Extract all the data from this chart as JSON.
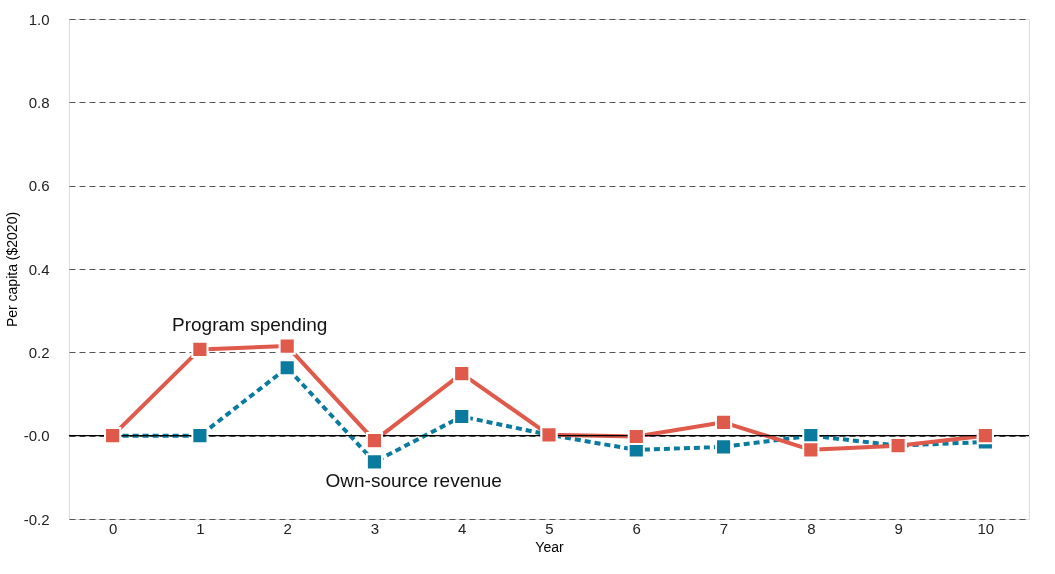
{
  "chart_data": {
    "type": "line",
    "xlabel": "Year",
    "ylabel": "Per capita ($2020)",
    "x": [
      0,
      1,
      2,
      3,
      4,
      5,
      6,
      7,
      8,
      9,
      10
    ],
    "xlim": [
      -0.5,
      10.5
    ],
    "xticks": [
      0,
      1,
      2,
      3,
      4,
      5,
      6,
      7,
      8,
      9,
      10
    ],
    "ylim": [
      -0.2,
      1.0
    ],
    "yticks": [
      -0.2,
      {
        "value": 0,
        "label": "-0.0"
      },
      0.2,
      0.4,
      0.6,
      0.8,
      {
        "value": 1,
        "label": "1.0"
      }
    ],
    "grid": "y",
    "marker": "square",
    "ref_lines": [
      {
        "axis": "y",
        "value": 0,
        "color": "#000000",
        "line_style": "solid"
      }
    ],
    "series": [
      {
        "name": "Own-source revenue",
        "color": "#0a7a9e",
        "line_style": "dashed",
        "values": [
          0,
          0,
          0.163,
          -0.063,
          0.046,
          0.002,
          -0.034,
          -0.027,
          0,
          -0.024,
          -0.015
        ]
      },
      {
        "name": "Program spending",
        "color": "#e05a4b",
        "line_style": "solid",
        "values": [
          0,
          0.207,
          0.215,
          -0.012,
          0.149,
          0.002,
          -0.002,
          0.032,
          -0.034,
          -0.024,
          0
        ]
      }
    ]
  }
}
